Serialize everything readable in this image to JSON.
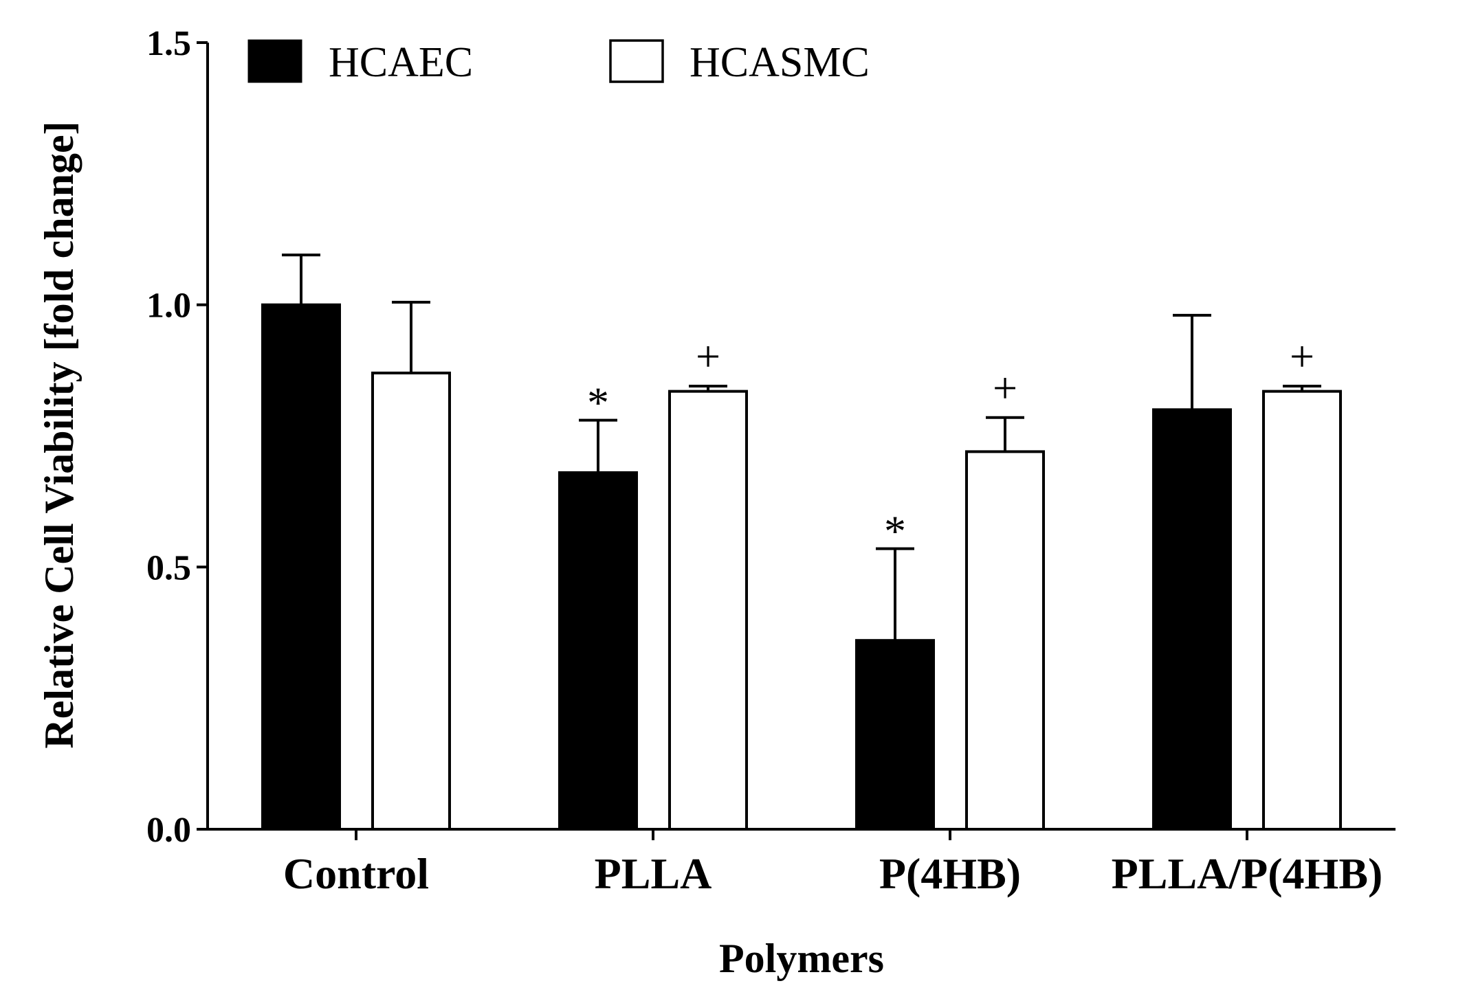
{
  "chart_data": {
    "type": "bar",
    "title": "",
    "xlabel": "Polymers",
    "ylabel": "Relative Cell Viability [fold change]",
    "ylim": [
      0,
      1.5
    ],
    "yticks": [
      "0.0",
      "0.5",
      "1.0",
      "1.5"
    ],
    "yticks_values": [
      0,
      0.5,
      1.0,
      1.5
    ],
    "legend_position": "top-left",
    "categories": [
      "Control",
      "PLLA",
      "P(4HB)",
      "PLLA/P(4HB)"
    ],
    "series": [
      {
        "name": "HCAEC",
        "fill": "#000000",
        "values": [
          1.0,
          0.68,
          0.36,
          0.8
        ],
        "errors": [
          0.095,
          0.1,
          0.175,
          0.18
        ],
        "annotations": [
          "",
          "*",
          "*",
          ""
        ]
      },
      {
        "name": "HCASMC",
        "fill": "#ffffff",
        "values": [
          0.87,
          0.835,
          0.72,
          0.835
        ],
        "errors": [
          0.135,
          0.01,
          0.065,
          0.01
        ],
        "annotations": [
          "",
          "+",
          "+",
          "+"
        ]
      }
    ]
  }
}
